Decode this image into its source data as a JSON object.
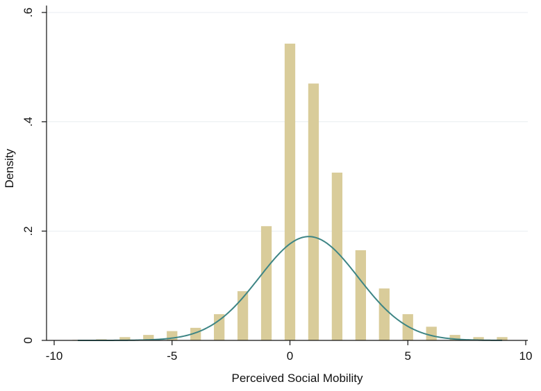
{
  "chart_data": {
    "type": "bar",
    "title": "",
    "xlabel": "Perceived Social Mobility",
    "ylabel": "Density",
    "xlim": [
      -10,
      10
    ],
    "ylim": [
      0,
      0.6
    ],
    "xticks": [
      -10,
      -5,
      0,
      5,
      10
    ],
    "xtick_labels": [
      "-10",
      "-5",
      "0",
      "5",
      "10"
    ],
    "yticks": [
      0,
      0.2,
      0.4,
      0.6
    ],
    "ytick_labels": [
      "0",
      ".2",
      ".4",
      ".6"
    ],
    "grid": "horizontal",
    "legend": "none",
    "bar_width": 0.45,
    "histogram": {
      "name": "",
      "x": [
        -9,
        -8,
        -7,
        -6,
        -5,
        -4,
        -3,
        -2,
        -1,
        0,
        1,
        2,
        3,
        4,
        5,
        6,
        7,
        8,
        9
      ],
      "values": [
        0.001,
        0.002,
        0.006,
        0.01,
        0.017,
        0.023,
        0.048,
        0.09,
        0.209,
        0.543,
        0.47,
        0.307,
        0.165,
        0.095,
        0.048,
        0.025,
        0.01,
        0.006,
        0.006
      ]
    },
    "normal_curve": {
      "name": "",
      "mean": 0.8,
      "sd": 2.1,
      "x_range": [
        -9,
        9
      ]
    },
    "colors": {
      "bars": "#d9cc9a",
      "curve": "#3d8585",
      "grid": "#e8eef1",
      "axis": "#111111"
    }
  }
}
